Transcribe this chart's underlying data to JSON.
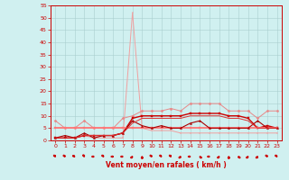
{
  "bg_color": "#d0f0f0",
  "grid_color": "#aacece",
  "xlabel": "Vent moyen/en rafales ( km/h )",
  "xlim": [
    -0.5,
    23.5
  ],
  "ylim": [
    0,
    55
  ],
  "yticks": [
    0,
    5,
    10,
    15,
    20,
    25,
    30,
    35,
    40,
    45,
    50,
    55
  ],
  "xticks": [
    0,
    1,
    2,
    3,
    4,
    5,
    6,
    7,
    8,
    9,
    10,
    11,
    12,
    13,
    14,
    15,
    16,
    17,
    18,
    19,
    20,
    21,
    22,
    23
  ],
  "series": [
    {
      "x": [
        0,
        1,
        2,
        3,
        4,
        5,
        6,
        7,
        8,
        9,
        10,
        11,
        12,
        13,
        14,
        15,
        16,
        17,
        18,
        19,
        20,
        21,
        22,
        23
      ],
      "y": [
        1,
        1,
        1,
        2,
        1,
        1,
        1,
        1,
        52,
        5,
        4,
        4,
        4,
        3,
        3,
        3,
        3,
        3,
        3,
        3,
        3,
        3,
        3,
        3
      ],
      "color": "#f0a0a0",
      "lw": 0.7,
      "marker": "+"
    },
    {
      "x": [
        0,
        1,
        2,
        3,
        4,
        5,
        6,
        7,
        8,
        9,
        10,
        11,
        12,
        13,
        14,
        15,
        16,
        17,
        18,
        19,
        20,
        21,
        22,
        23
      ],
      "y": [
        8,
        5,
        5,
        8,
        5,
        5,
        5,
        9,
        10,
        12,
        12,
        12,
        13,
        12,
        15,
        15,
        15,
        15,
        12,
        12,
        12,
        9,
        12,
        12
      ],
      "color": "#e88888",
      "lw": 0.7,
      "marker": "D",
      "ms": 1.5
    },
    {
      "x": [
        0,
        1,
        2,
        3,
        4,
        5,
        6,
        7,
        8,
        9,
        10,
        11,
        12,
        13,
        14,
        15,
        16,
        17,
        18,
        19,
        20,
        21,
        22,
        23
      ],
      "y": [
        1,
        1,
        1,
        2,
        2,
        2,
        2,
        3,
        9,
        10,
        10,
        10,
        10,
        10,
        11,
        11,
        11,
        11,
        10,
        10,
        9,
        5,
        6,
        5
      ],
      "color": "#cc0000",
      "lw": 1.0,
      "marker": "s",
      "ms": 1.5
    },
    {
      "x": [
        0,
        1,
        2,
        3,
        4,
        5,
        6,
        7,
        8,
        9,
        10,
        11,
        12,
        13,
        14,
        15,
        16,
        17,
        18,
        19,
        20,
        21,
        22,
        23
      ],
      "y": [
        5,
        5,
        5,
        5,
        5,
        5,
        5,
        5,
        5,
        5,
        5,
        5,
        5,
        5,
        5,
        5,
        5,
        5,
        5,
        5,
        5,
        5,
        5,
        5
      ],
      "color": "#ff7777",
      "lw": 1.3,
      "marker": "s",
      "ms": 1.5
    },
    {
      "x": [
        0,
        1,
        2,
        3,
        4,
        5,
        6,
        7,
        8,
        9,
        10,
        11,
        12,
        13,
        14,
        15,
        16,
        17,
        18,
        19,
        20,
        21,
        22,
        23
      ],
      "y": [
        1,
        2,
        1,
        3,
        1,
        2,
        2,
        3,
        8,
        6,
        5,
        6,
        5,
        5,
        7,
        8,
        5,
        5,
        5,
        5,
        5,
        8,
        5,
        5
      ],
      "color": "#aa0000",
      "lw": 0.8,
      "marker": "^",
      "ms": 1.5
    },
    {
      "x": [
        0,
        1,
        2,
        3,
        4,
        5,
        6,
        7,
        8,
        9,
        10,
        11,
        12,
        13,
        14,
        15,
        16,
        17,
        18,
        19,
        20,
        21,
        22,
        23
      ],
      "y": [
        1,
        1,
        1,
        2,
        2,
        2,
        2,
        3,
        7,
        9,
        9,
        9,
        9,
        9,
        10,
        10,
        10,
        10,
        9,
        9,
        8,
        5,
        5,
        5
      ],
      "color": "#dd3333",
      "lw": 0.7,
      "marker": null
    }
  ],
  "arrow_angles": [
    225,
    225,
    240,
    210,
    270,
    225,
    270,
    270,
    315,
    0,
    225,
    225,
    225,
    315,
    270,
    45,
    270,
    315,
    0,
    45,
    315,
    315,
    225,
    225
  ]
}
